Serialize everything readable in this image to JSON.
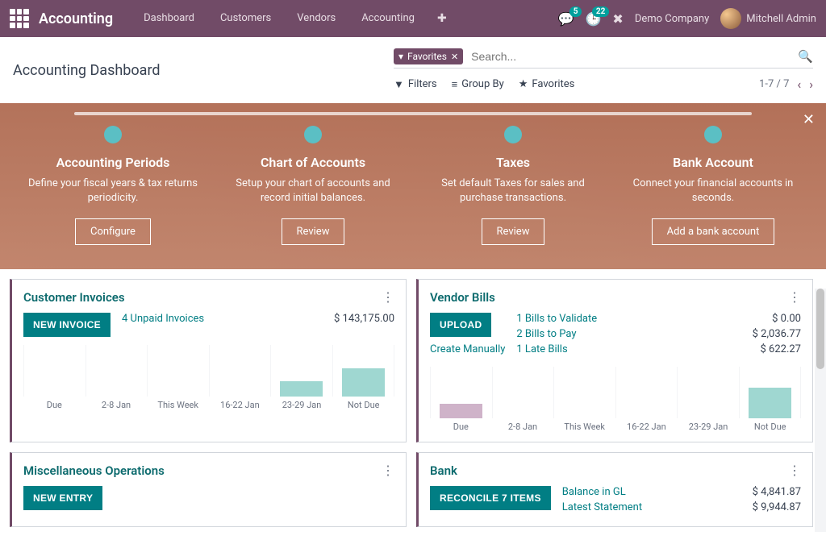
{
  "nav": {
    "brand": "Accounting",
    "items": [
      "Dashboard",
      "Customers",
      "Vendors",
      "Accounting"
    ],
    "messages_badge": "5",
    "activities_badge": "22",
    "company": "Demo Company",
    "user": "Mitchell Admin"
  },
  "page": {
    "title": "Accounting Dashboard",
    "filter_chip": "Favorites",
    "search_placeholder": "Search...",
    "filters_label": "Filters",
    "groupby_label": "Group By",
    "favorites_label": "Favorites",
    "pager": "1-7 / 7"
  },
  "onboard": {
    "steps": [
      {
        "title": "Accounting Periods",
        "desc": "Define your fiscal years & tax returns periodicity.",
        "btn": "Configure"
      },
      {
        "title": "Chart of Accounts",
        "desc": "Setup your chart of accounts and record initial balances.",
        "btn": "Review"
      },
      {
        "title": "Taxes",
        "desc": "Set default Taxes for sales and purchase transactions.",
        "btn": "Review"
      },
      {
        "title": "Bank Account",
        "desc": "Connect your financial accounts in seconds.",
        "btn": "Add a bank account"
      }
    ]
  },
  "card_ci": {
    "title": "Customer Invoices",
    "btn": "NEW INVOICE",
    "stats": [
      {
        "label": "4 Unpaid Invoices",
        "value": "$ 143,175.00"
      }
    ],
    "axis": [
      "Due",
      "2-8 Jan",
      "This Week",
      "16-22 Jan",
      "23-29 Jan",
      "Not Due"
    ],
    "bars": [
      0,
      0,
      0,
      0,
      30,
      55
    ],
    "bar_color": "teal"
  },
  "card_vb": {
    "title": "Vendor Bills",
    "btn": "UPLOAD",
    "link": "Create Manually",
    "stats": [
      {
        "label": "1 Bills to Validate",
        "value": "$ 0.00"
      },
      {
        "label": "2 Bills to Pay",
        "value": "$ 2,036.77"
      },
      {
        "label": "1 Late Bills",
        "value": "$ 622.27"
      }
    ],
    "axis": [
      "Due",
      "2-8 Jan",
      "This Week",
      "16-22 Jan",
      "23-29 Jan",
      "Not Due"
    ],
    "bars_rose": [
      28,
      0,
      0,
      0,
      0,
      0
    ],
    "bars_teal": [
      0,
      0,
      0,
      0,
      0,
      60
    ]
  },
  "card_misc": {
    "title": "Miscellaneous Operations",
    "btn": "NEW ENTRY"
  },
  "card_bank": {
    "title": "Bank",
    "btn": "RECONCILE 7 ITEMS",
    "stats": [
      {
        "label": "Balance in GL",
        "value": "$ 4,841.87"
      },
      {
        "label": "Latest Statement",
        "value": "$ 9,944.87"
      }
    ]
  }
}
